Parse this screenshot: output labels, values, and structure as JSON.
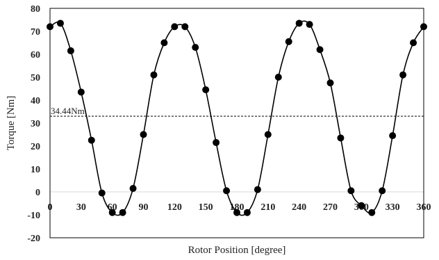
{
  "chart_data": {
    "type": "scatter",
    "title": "",
    "xlabel": "Rotor Position [degree]",
    "ylabel": "Torque [Nm]",
    "xlim": [
      0,
      360
    ],
    "ylim": [
      -20,
      80
    ],
    "xticks": [
      0,
      30,
      60,
      90,
      120,
      150,
      180,
      210,
      240,
      270,
      300,
      330,
      360
    ],
    "yticks": [
      -20,
      -10,
      0,
      10,
      20,
      30,
      40,
      50,
      60,
      70,
      80
    ],
    "grid": false,
    "legend": "none",
    "series": [
      {
        "x": [
          0,
          10,
          20,
          30,
          40,
          50,
          60,
          70,
          80,
          90,
          100,
          110,
          120,
          130,
          140,
          150,
          160,
          170,
          180,
          190,
          200,
          210,
          220,
          230,
          240,
          250,
          260,
          270,
          280,
          290,
          300,
          310,
          320,
          330,
          340,
          350,
          360
        ],
        "y": [
          72,
          73.5,
          61.5,
          43.5,
          22.5,
          -0.5,
          -9,
          -9,
          1.5,
          25,
          51,
          65,
          72,
          72,
          63,
          44.5,
          21.5,
          0.5,
          -9,
          -9,
          1,
          25,
          50,
          65.5,
          73.5,
          73,
          62,
          47.5,
          23.5,
          0.5,
          -6,
          -9,
          0.5,
          24.5,
          51,
          65,
          72
        ]
      }
    ],
    "annotations": [
      {
        "text": "34.44Nm",
        "y": 33,
        "style": "dashed-horizontal-line"
      }
    ],
    "colors": {
      "line": "#000000",
      "marker": "#000000",
      "zero_line": "#d9d9d9"
    }
  }
}
